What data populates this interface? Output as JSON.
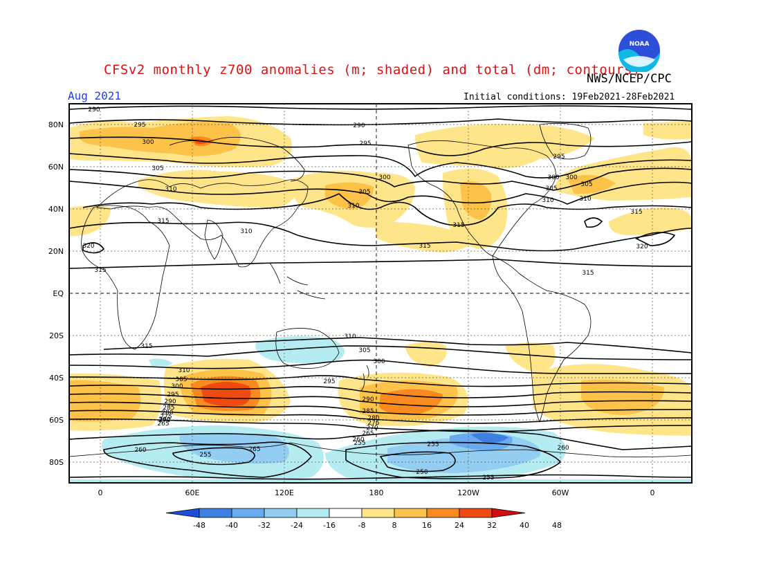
{
  "header": {
    "title": "CFSv2 monthly z700 anomalies (m; shaded) and total (dm; contours)",
    "agency": "NWS/NCEP/CPC",
    "month": "Aug 2021",
    "initial_conditions": "Initial conditions: 19Feb2021-28Feb2021",
    "logo_text": "NOAA"
  },
  "map": {
    "lat_labels": [
      "80N",
      "60N",
      "40N",
      "20N",
      "EQ",
      "20S",
      "40S",
      "60S",
      "80S"
    ],
    "lon_labels": [
      "0",
      "60E",
      "120E",
      "180",
      "120W",
      "60W",
      "0"
    ],
    "contour_labels": [
      "290",
      "295",
      "300",
      "305",
      "310",
      "315",
      "320",
      "315",
      "310",
      "305",
      "300",
      "295",
      "290",
      "285",
      "280",
      "275",
      "270",
      "265",
      "260",
      "255",
      "250"
    ],
    "contour_label_list": [
      "290",
      "295",
      "300",
      "305",
      "310",
      "315",
      "320",
      "315",
      "290",
      "295",
      "300",
      "305",
      "310",
      "315",
      "310",
      "315",
      "300",
      "305",
      "310",
      "295",
      "300",
      "305",
      "310",
      "315",
      "320",
      "315",
      "315",
      "310",
      "305",
      "300",
      "295",
      "290",
      "285",
      "280",
      "275",
      "270",
      "265",
      "260",
      "310",
      "305",
      "300",
      "295",
      "290",
      "285",
      "280",
      "275",
      "270",
      "265",
      "260",
      "255",
      "260",
      "255",
      "265",
      "250",
      "255",
      "255",
      "260"
    ],
    "colors": {
      "pos8": "#ffe58a",
      "pos16": "#fdc24a",
      "pos24": "#f88a1f",
      "pos32": "#ef4a12",
      "pos40": "#d01010",
      "neg8": "#b4ecf2",
      "neg16": "#94cdf2",
      "neg24": "#6aaaee",
      "neg32": "#3e80e0"
    }
  },
  "colorbar": {
    "labels": [
      "-48",
      "-40",
      "-32",
      "-24",
      "-16",
      "-8",
      "8",
      "16",
      "24",
      "32",
      "40",
      "48"
    ],
    "colors": [
      "#1a4fd6",
      "#3e80e0",
      "#6aaaee",
      "#94cdf2",
      "#b4ecf2",
      "#ffffff",
      "#ffe58a",
      "#fdc24a",
      "#f88a1f",
      "#ef4a12",
      "#d01010"
    ]
  }
}
